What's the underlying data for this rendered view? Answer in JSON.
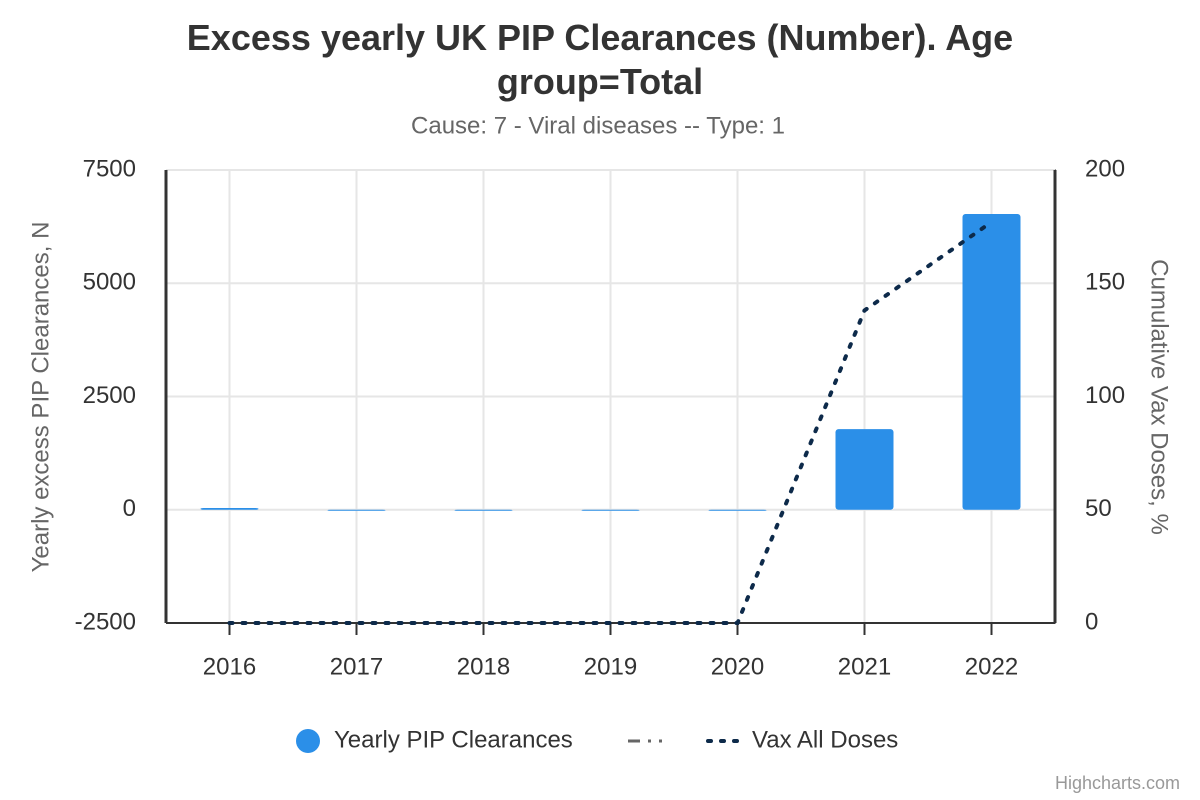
{
  "chart_data": {
    "type": "bar",
    "title": "Excess yearly UK PIP Clearances (Number). Age group=Total",
    "subtitle": "Cause: 7 - Viral diseases -- Type: 1",
    "categories": [
      "2016",
      "2017",
      "2018",
      "2019",
      "2020",
      "2021",
      "2022"
    ],
    "series": [
      {
        "name": "Yearly PIP Clearances",
        "type": "bar",
        "color": "#2b8fe8",
        "values": [
          40,
          0,
          0,
          0,
          0,
          1780,
          6530
        ]
      },
      {
        "name": "Vax All Doses",
        "type": "line",
        "axis": "y2",
        "color": "#0d2a4a",
        "values": [
          0,
          0,
          0,
          0,
          0,
          138,
          177
        ]
      }
    ],
    "ylabel": "Yearly excess PIP Clearances, N",
    "y2label": "Cumulative Vax Doses, %",
    "ylim": [
      -2500,
      7500
    ],
    "yticks": [
      -2500,
      0,
      2500,
      5000,
      7500
    ],
    "y2lim": [
      0,
      200
    ],
    "y2ticks": [
      0,
      50,
      100,
      150,
      200
    ],
    "grid": true,
    "credit": "Highcharts.com"
  }
}
